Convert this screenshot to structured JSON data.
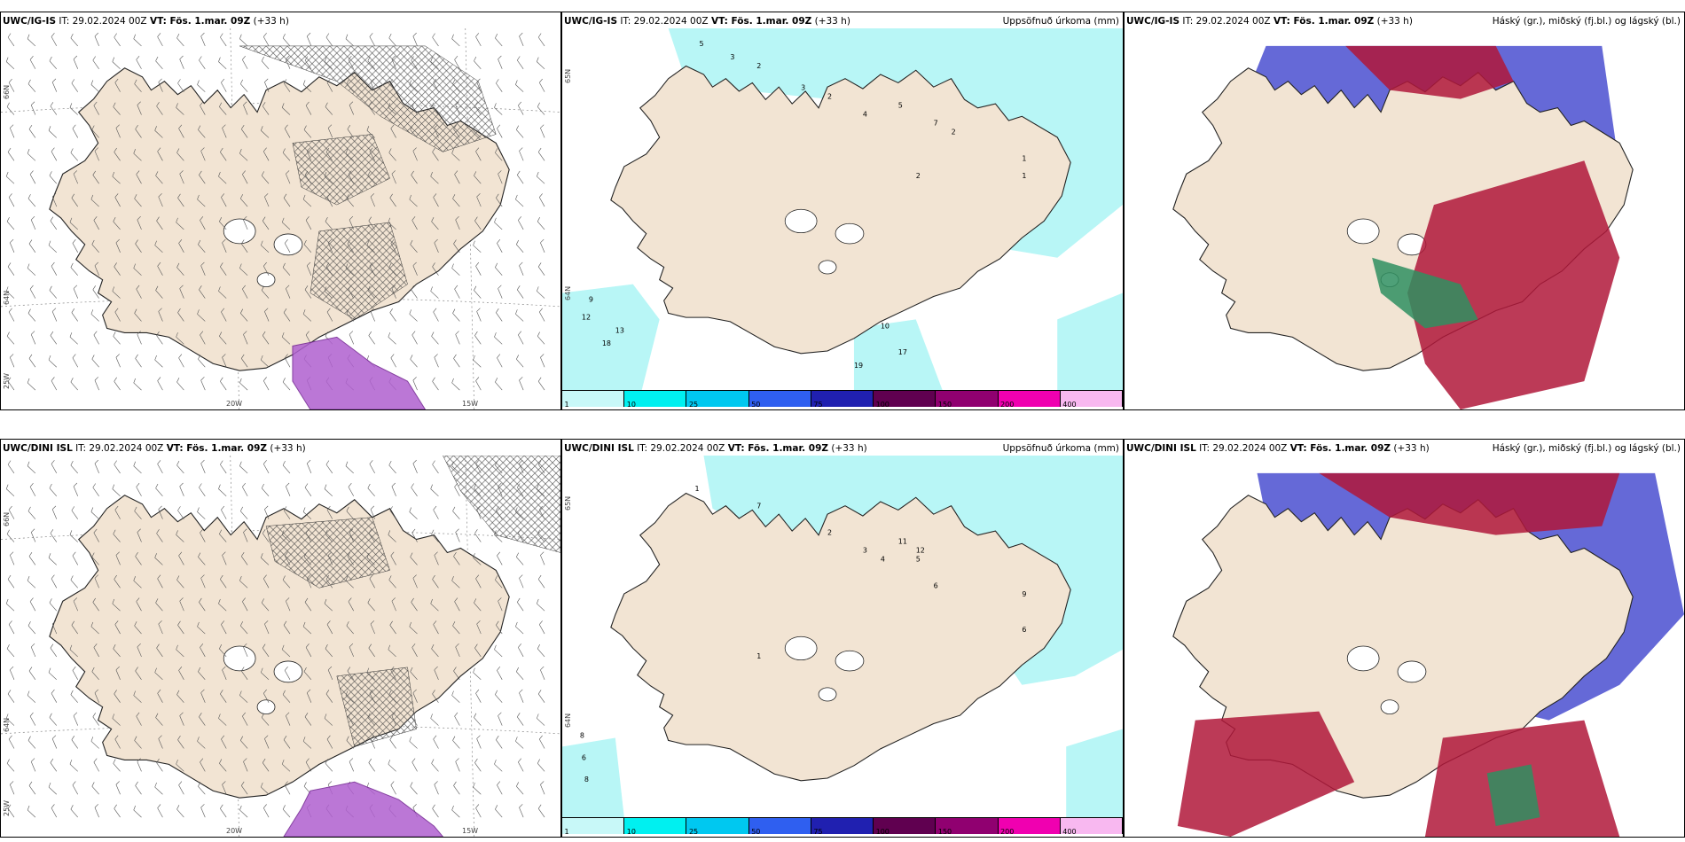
{
  "panels": [
    {
      "id": "top-left",
      "model": "UWC/IG-IS",
      "it": "IT: 29.02.2024 00Z",
      "vt": "VT: Fös. 1.mar. 09Z",
      "lead": "(+33 h)",
      "right": "",
      "lat_labels": [
        "66N",
        "64N",
        "25W"
      ],
      "lon_labels": [
        "20W",
        "15W"
      ],
      "kind": "wind"
    },
    {
      "id": "top-mid",
      "model": "UWC/IG-IS",
      "it": "IT: 29.02.2024 00Z",
      "vt": "VT: Fös. 1.mar. 09Z",
      "lead": "(+33 h)",
      "right": "Uppsöfnuð úrkoma (mm)",
      "lat_labels": [
        "65N",
        "64N"
      ],
      "lon_labels": [],
      "kind": "precip"
    },
    {
      "id": "top-right",
      "model": "UWC/IG-IS",
      "it": "IT: 29.02.2024 00Z",
      "vt": "VT: Fös. 1.mar. 09Z",
      "lead": "(+33 h)",
      "right": "Háský (gr.), miðský (fj.bl.) og lágský (bl.)",
      "lat_labels": [],
      "lon_labels": [],
      "kind": "cloud"
    },
    {
      "id": "bottom-left",
      "model": "UWC/DINI ISL",
      "it": "IT: 29.02.2024 00Z",
      "vt": "VT: Fös. 1.mar. 09Z",
      "lead": "(+33 h)",
      "right": "",
      "lat_labels": [
        "66N",
        "64N",
        "25W"
      ],
      "lon_labels": [
        "20W",
        "15W"
      ],
      "kind": "wind"
    },
    {
      "id": "bottom-mid",
      "model": "UWC/DINI ISL",
      "it": "IT: 29.02.2024 00Z",
      "vt": "VT: Fös. 1.mar. 09Z",
      "lead": "(+33 h)",
      "right": "Uppsöfnuð úrkoma (mm)",
      "lat_labels": [
        "65N",
        "64N"
      ],
      "lon_labels": [],
      "kind": "precip"
    },
    {
      "id": "bottom-right",
      "model": "UWC/DINI ISL",
      "it": "IT: 29.02.2024 00Z",
      "vt": "VT: Fös. 1.mar. 09Z",
      "lead": "(+33 h)",
      "right": "Háský (gr.), miðský (fj.bl.) og lágský (bl.)",
      "lat_labels": [],
      "lon_labels": [],
      "kind": "cloud"
    }
  ],
  "colorbar": {
    "ticks": [
      "1",
      "10",
      "25",
      "50",
      "75",
      "100",
      "150",
      "200",
      "400"
    ],
    "colors": [
      "#c8f8f8",
      "#00f0f0",
      "#00c8f0",
      "#2f5ff0",
      "#2020b0",
      "#600050",
      "#900070",
      "#f000b0",
      "#f8b8f0"
    ]
  },
  "precip_labels_top": [
    "5",
    "3",
    "2",
    "3",
    "2",
    "4",
    "5",
    "7",
    "2",
    "1",
    "1",
    "2",
    "12",
    "18",
    "19",
    "13",
    "9",
    "17",
    "10"
  ],
  "precip_labels_bottom": [
    "8",
    "6",
    "8",
    "1",
    "2",
    "3",
    "4",
    "5",
    "6",
    "9",
    "11",
    "12",
    "7",
    "1",
    "6"
  ],
  "colors": {
    "land": "#f2e4d3",
    "precip_light": "#b8f6f6",
    "cloud_high": "#b0183a",
    "cloud_mid": "#4a4fd0",
    "cloud_low": "#2f8f60",
    "wind_precip": "#b060d0"
  }
}
